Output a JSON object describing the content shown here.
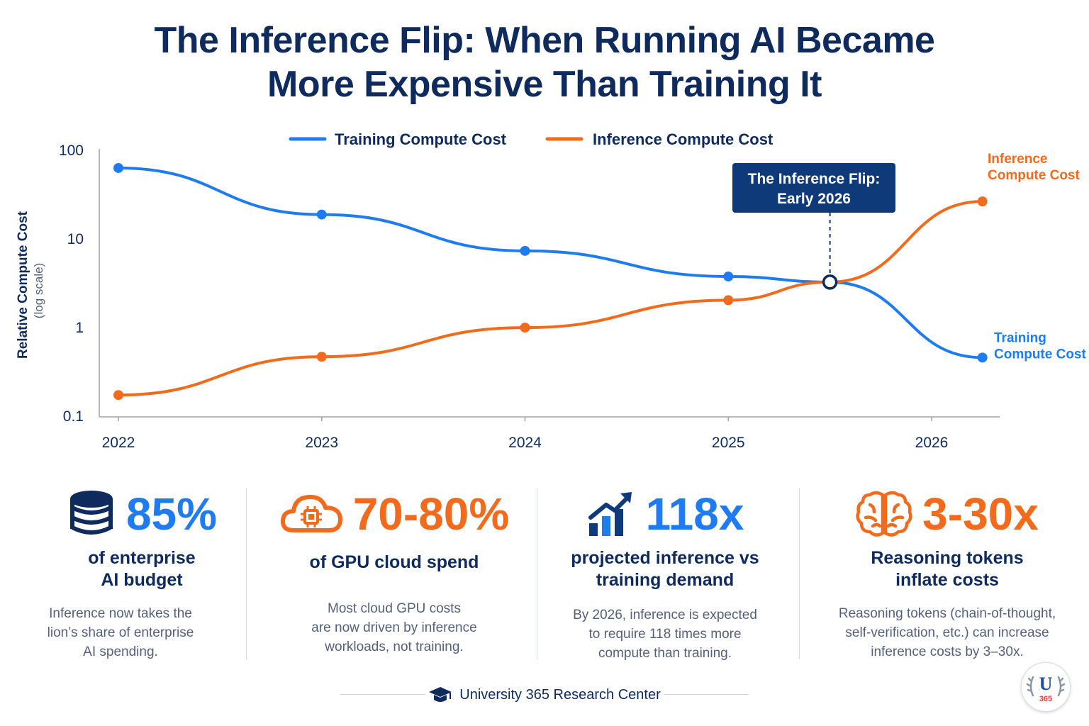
{
  "title": {
    "line1": "The  Inference Flip: When Running AI Became",
    "line2": "More Expensive Than Training It"
  },
  "chart_data": {
    "type": "line",
    "x": [
      2022,
      2023,
      2024,
      2025,
      2026
    ],
    "xlabel": "",
    "ylabel": "Relative Compute Cost",
    "ylabel_sub": "(log scale)",
    "yscale": "log",
    "ylim": [
      0.1,
      100
    ],
    "yticks": [
      "100",
      "10",
      "1",
      "0.1"
    ],
    "xticks": [
      "2022",
      "2023",
      "2024",
      "2025",
      "2026"
    ],
    "grid": false,
    "legend_position": "top-center",
    "series": [
      {
        "name": "Training Compute Cost",
        "end_label": [
          "Training",
          "Compute Cost"
        ],
        "color": "#1f7cf0",
        "points": [
          [
            2022.0,
            62
          ],
          [
            2023.0,
            18.5
          ],
          [
            2024.0,
            7.2
          ],
          [
            2025.0,
            3.7
          ],
          [
            2025.5,
            3.2
          ],
          [
            2026.25,
            0.45
          ]
        ]
      },
      {
        "name": "Inference Compute Cost",
        "end_label": [
          "Inference",
          "Compute Cost"
        ],
        "color": "#f26b1d",
        "points": [
          [
            2022.0,
            0.17
          ],
          [
            2023.0,
            0.46
          ],
          [
            2024.0,
            0.98
          ],
          [
            2025.0,
            2.0
          ],
          [
            2025.5,
            3.2
          ],
          [
            2026.25,
            26
          ]
        ]
      }
    ],
    "annotation": {
      "line1": "The Inference Flip:",
      "line2": "Early 2026",
      "x": 2025.5,
      "y": 3.2
    }
  },
  "stats": [
    {
      "icon": "database-icon",
      "value": "85%",
      "color": "blue",
      "label": [
        "of enterprise",
        "AI budget"
      ],
      "desc": [
        "Inference now takes the",
        "lion’s share of enterprise",
        "AI spending."
      ]
    },
    {
      "icon": "cloud-chip-icon",
      "value": "70-80%",
      "color": "orange",
      "label": [
        "of GPU cloud spend"
      ],
      "desc": [
        "Most cloud GPU costs",
        "are now driven by inference",
        "workloads, not training."
      ]
    },
    {
      "icon": "growth-chart-icon",
      "value": "118x",
      "color": "blue",
      "label": [
        "projected inference vs",
        "training demand"
      ],
      "desc": [
        "By 2026, inference is expected",
        "to require 118 times more",
        "compute than training."
      ]
    },
    {
      "icon": "brain-icon",
      "value": "3-30x",
      "color": "orange",
      "label": [
        "Reasoning tokens",
        "inflate costs"
      ],
      "desc": [
        "Reasoning tokens (chain-of-thought,",
        "self-verification, etc.) can increase",
        "inference costs by 3–30x."
      ]
    }
  ],
  "footer": {
    "icon": "graduation-cap-icon",
    "text": "University 365 Research Center"
  },
  "badge": {
    "icon": "u365-laurel-logo",
    "letter": "U",
    "number": "365"
  },
  "colors": {
    "navy": "#0f2a5c",
    "blue": "#1f7cf0",
    "orange": "#f26b1d",
    "gray_text": "#55607a"
  }
}
